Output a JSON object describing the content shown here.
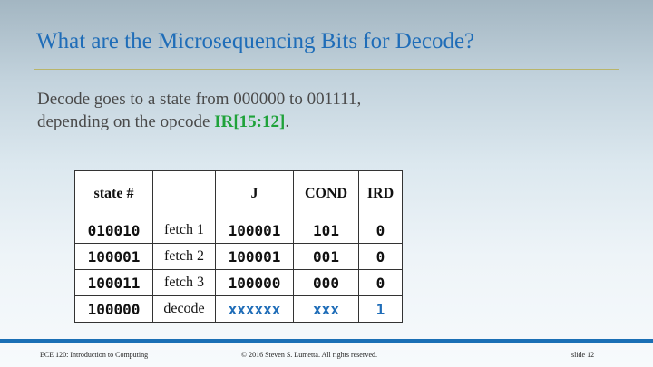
{
  "slide": {
    "title": "What are the Microsequencing Bits for Decode?",
    "body_line1": "Decode goes to a state from 000000 to 001111,",
    "body_line2_prefix": "depending on the opcode ",
    "body_line2_highlight": "IR[15:12]",
    "body_line2_suffix": "."
  },
  "table": {
    "headers": [
      "state #",
      "",
      "J",
      "COND",
      "IRD"
    ],
    "rows": [
      {
        "state": "010010",
        "label": "fetch 1",
        "j": "100001",
        "cond": "101",
        "ird": "0"
      },
      {
        "state": "100001",
        "label": "fetch 2",
        "j": "100001",
        "cond": "001",
        "ird": "0"
      },
      {
        "state": "100011",
        "label": "fetch 3",
        "j": "100000",
        "cond": "000",
        "ird": "0"
      },
      {
        "state": "100000",
        "label": "decode",
        "j": "xxxxxx",
        "cond": "xxx",
        "ird": "1"
      }
    ]
  },
  "footer": {
    "course": "ECE 120: Introduction to Computing",
    "copyright": "© 2016 Steven S. Lumetta.  All rights reserved.",
    "slide_number": "slide 12"
  },
  "colors": {
    "title": "#1f6db8",
    "highlight": "#1fa23a",
    "footer_bar": "#1a6fb5"
  }
}
